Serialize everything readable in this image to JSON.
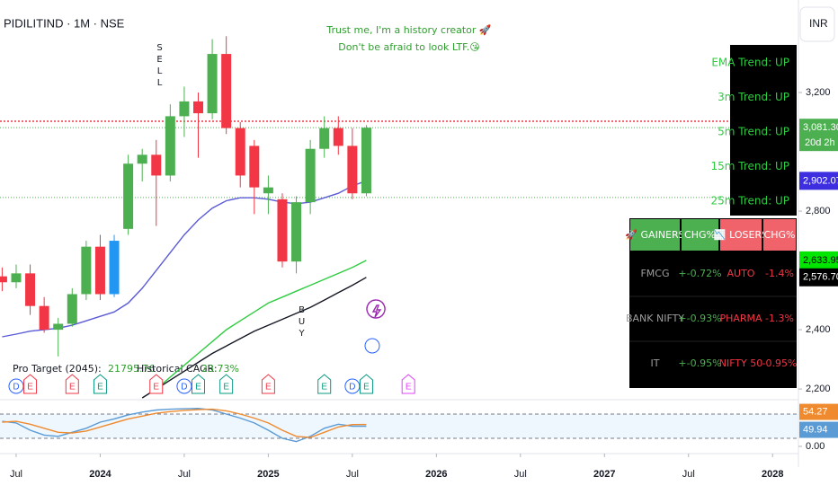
{
  "chart_data": {
    "type": "candlestick",
    "title": "PIDILITIND · 1M · NSE",
    "currency": "INR",
    "annotation": [
      "Trust me, I'm a history creator 🚀",
      "Don't be afraid to look LTF.😘"
    ],
    "sell_label": "SELL",
    "buy_label": "BUY",
    "up_color": "#4caf50",
    "down_color": "#f23645",
    "highlight": {
      "x": "2024-02",
      "color": "#2196f3"
    },
    "candles": [
      {
        "x": "2023-06",
        "open": 2580,
        "high": 2610,
        "low": 2530,
        "close": 2560
      },
      {
        "x": "2023-07",
        "open": 2560,
        "high": 2620,
        "low": 2540,
        "close": 2590
      },
      {
        "x": "2023-08",
        "open": 2590,
        "high": 2620,
        "low": 2450,
        "close": 2480
      },
      {
        "x": "2023-09",
        "open": 2480,
        "high": 2510,
        "low": 2390,
        "close": 2400
      },
      {
        "x": "2023-10",
        "open": 2400,
        "high": 2440,
        "low": 2310,
        "close": 2420
      },
      {
        "x": "2023-11",
        "open": 2420,
        "high": 2540,
        "low": 2410,
        "close": 2520
      },
      {
        "x": "2023-12",
        "open": 2520,
        "high": 2700,
        "low": 2500,
        "close": 2680
      },
      {
        "x": "2024-01",
        "open": 2680,
        "high": 2720,
        "low": 2500,
        "close": 2520
      },
      {
        "x": "2024-02",
        "open": 2520,
        "high": 2720,
        "low": 2510,
        "close": 2700
      },
      {
        "x": "2024-03",
        "open": 2740,
        "high": 2990,
        "low": 2720,
        "close": 2960
      },
      {
        "x": "2024-04",
        "open": 2960,
        "high": 3010,
        "low": 2900,
        "close": 2990
      },
      {
        "x": "2024-05",
        "open": 2990,
        "high": 3040,
        "low": 2750,
        "close": 2920
      },
      {
        "x": "2024-06",
        "open": 2920,
        "high": 3160,
        "low": 2900,
        "close": 3120
      },
      {
        "x": "2024-07",
        "open": 3120,
        "high": 3220,
        "low": 3050,
        "close": 3170
      },
      {
        "x": "2024-08",
        "open": 3170,
        "high": 3200,
        "low": 2980,
        "close": 3130
      },
      {
        "x": "2024-09",
        "open": 3130,
        "high": 3380,
        "low": 3110,
        "close": 3330
      },
      {
        "x": "2024-10",
        "open": 3330,
        "high": 3390,
        "low": 3060,
        "close": 3080
      },
      {
        "x": "2024-11",
        "open": 3080,
        "high": 3100,
        "low": 2880,
        "close": 2920
      },
      {
        "x": "2024-12",
        "open": 3020,
        "high": 3040,
        "low": 2790,
        "close": 2880
      },
      {
        "x": "2025-01",
        "open": 2860,
        "high": 2920,
        "low": 2790,
        "close": 2880
      },
      {
        "x": "2025-02",
        "open": 2840,
        "high": 2860,
        "low": 2610,
        "close": 2630
      },
      {
        "x": "2025-03",
        "open": 2630,
        "high": 2850,
        "low": 2590,
        "close": 2830
      },
      {
        "x": "2025-04",
        "open": 2830,
        "high": 3040,
        "low": 2790,
        "close": 3010
      },
      {
        "x": "2025-05",
        "open": 3010,
        "high": 3120,
        "low": 2980,
        "close": 3080
      },
      {
        "x": "2025-06",
        "open": 3080,
        "high": 3120,
        "low": 2990,
        "close": 3020
      },
      {
        "x": "2025-07",
        "open": 3020,
        "high": 3080,
        "low": 2840,
        "close": 2860
      },
      {
        "x": "2025-08",
        "open": 2860,
        "high": 3090,
        "low": 2850,
        "close": 3081.3
      }
    ],
    "lines": [
      {
        "color": "#5b5bd6",
        "values": [
          2376,
          2385,
          2395,
          2400,
          2405,
          2415,
          2430,
          2445,
          2460,
          2490,
          2540,
          2600,
          2660,
          2720,
          2770,
          2810,
          2835,
          2845,
          2845,
          2840,
          2830,
          2825,
          2830,
          2845,
          2860,
          2885,
          2902.07
        ]
      },
      {
        "color": "#2ecc40",
        "values": [
          null,
          null,
          null,
          null,
          null,
          null,
          null,
          null,
          null,
          null,
          null,
          2200,
          2240,
          2280,
          2320,
          2360,
          2400,
          2430,
          2460,
          2490,
          2510,
          2530,
          2550,
          2570,
          2590,
          2610,
          2633.95
        ]
      },
      {
        "color": "#131722",
        "values": [
          null,
          null,
          null,
          null,
          null,
          null,
          null,
          null,
          null,
          null,
          2170,
          2200,
          2230,
          2260,
          2290,
          2320,
          2345,
          2370,
          2395,
          2415,
          2435,
          2455,
          2475,
          2500,
          2525,
          2550,
          2576.7
        ]
      }
    ],
    "levels": [
      {
        "value": 3103,
        "color": "#f23645"
      },
      {
        "value": 3081.3,
        "color": "#4caf50"
      },
      {
        "value": 2846,
        "color": "#4caf50"
      }
    ],
    "price_labels": [
      {
        "value": 3081.3,
        "label": "3,081.30",
        "color": "#4caf50"
      },
      {
        "value": 2902.07,
        "label": "2,902.07",
        "color": "#3d2fe0"
      },
      {
        "value": 2633.95,
        "label": "2,633.95",
        "color": "#00e600"
      },
      {
        "value": 2576.7,
        "label": "2,576.70",
        "color": "#000000"
      }
    ],
    "countdown": "20d 2h",
    "ylim": [
      2164,
      3512
    ],
    "yticks": [
      {
        "value": 3200,
        "label": "3,200"
      },
      {
        "value": 2800,
        "label": "2,800"
      },
      {
        "value": 2400,
        "label": "2,400"
      },
      {
        "value": 2200,
        "label": "2,200"
      }
    ],
    "xlim": [
      "2023-06",
      "2028-02"
    ],
    "xticks": [
      {
        "value": "2023-07",
        "label": "Jul"
      },
      {
        "value": "2024-01",
        "label": "2024"
      },
      {
        "value": "2024-07",
        "label": "Jul"
      },
      {
        "value": "2025-01",
        "label": "2025"
      },
      {
        "value": "2025-07",
        "label": "Jul"
      },
      {
        "value": "2026-01",
        "label": "2026"
      },
      {
        "value": "2026-07",
        "label": "Jul"
      },
      {
        "value": "2027-01",
        "label": "2027"
      },
      {
        "value": "2027-07",
        "label": "Jul"
      },
      {
        "value": "2028-01",
        "label": "2028"
      }
    ],
    "events": [
      {
        "x": "2023-07",
        "label": "D",
        "color": "#2962ff"
      },
      {
        "x": "2023-08",
        "label": "E",
        "color": "#f23645"
      },
      {
        "x": "2023-11",
        "label": "E",
        "color": "#f23645"
      },
      {
        "x": "2024-01",
        "label": "E",
        "color": "#089981"
      },
      {
        "x": "2024-05",
        "label": "E",
        "color": "#f23645"
      },
      {
        "x": "2024-07",
        "label": "D",
        "color": "#2962ff"
      },
      {
        "x": "2024-08",
        "label": "E",
        "color": "#089981"
      },
      {
        "x": "2024-10",
        "label": "E",
        "color": "#089981"
      },
      {
        "x": "2025-01",
        "label": "E",
        "color": "#f23645"
      },
      {
        "x": "2025-05",
        "label": "E",
        "color": "#089981"
      },
      {
        "x": "2025-07",
        "label": "D",
        "color": "#2962ff"
      },
      {
        "x": "2025-08",
        "label": "E",
        "color": "#089981"
      },
      {
        "x": "2025-11",
        "label": "E",
        "color": "#e040fb"
      }
    ],
    "pro_target": {
      "label": "Pro Target (2045):",
      "value": "21795.76"
    },
    "cagr": {
      "label": "Historical CAGR:",
      "value": "23.73%"
    },
    "trend_table": [
      "EMA Trend: UP",
      "3m Trend: UP",
      "5m Trend: UP",
      "15m Trend: UP",
      "25m Trend: UP"
    ],
    "sector_table": {
      "header": [
        "🚀 GAINERS",
        "CHG%",
        "📉 LOSERS",
        "CHG%"
      ],
      "rows": [
        [
          "FMCG",
          "+-0.72%",
          "AUTO",
          "-1.4%"
        ],
        [
          "BANK NIFTY",
          "+-0.93%",
          "PHARMA",
          "-1.3%"
        ],
        [
          "IT",
          "+-0.95%",
          "NIFTY 50",
          "-0.95%"
        ]
      ]
    },
    "oscillator": {
      "ylim": [
        0,
        100
      ],
      "yticks": [
        {
          "value": 0,
          "label": "0.00"
        }
      ],
      "levels": [
        80,
        20
      ],
      "series": [
        {
          "color": "#5b9bd5",
          "values": [
            62,
            58,
            40,
            28,
            25,
            35,
            45,
            60,
            68,
            78,
            85,
            90,
            92,
            93,
            94,
            90,
            80,
            70,
            58,
            40,
            20,
            12,
            25,
            45,
            55,
            50,
            49.94
          ],
          "last_label": "49.94"
        },
        {
          "color": "#ef8a2e",
          "values": [
            60,
            62,
            55,
            45,
            35,
            33,
            38,
            48,
            58,
            68,
            75,
            82,
            86,
            89,
            91,
            92,
            88,
            80,
            70,
            58,
            40,
            25,
            22,
            35,
            48,
            54,
            54.27
          ],
          "last_label": "54.27"
        }
      ]
    }
  }
}
